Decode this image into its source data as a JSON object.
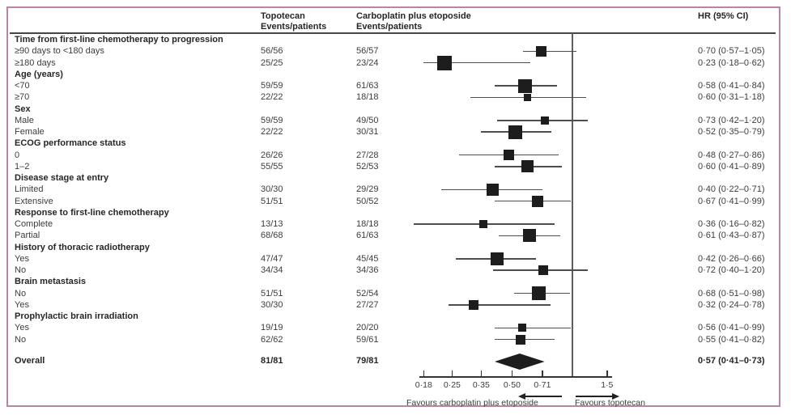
{
  "header": {
    "topotecan_line1": "Topotecan",
    "topotecan_line2": "Events/patients",
    "carboplatin_line1": "Carboplatin plus etoposide",
    "carboplatin_line2": "Events/patients",
    "hr": "HR (95% CI)"
  },
  "colors": {
    "border": "#b487a2",
    "marker": "#1d1d1d",
    "ci_line": "#4d4d4d",
    "ref_line": "#5e5e5e",
    "axis": "#333333",
    "text": "#3c3c3c"
  },
  "chart_data": {
    "type": "forest",
    "x_scale": "log",
    "reference_line_value": 1.0,
    "axis_ticks": [
      {
        "label": "0·18",
        "value": 0.18
      },
      {
        "label": "0·25",
        "value": 0.25
      },
      {
        "label": "0·35",
        "value": 0.35
      },
      {
        "label": "0·50",
        "value": 0.5
      },
      {
        "label": "0·71",
        "value": 0.71
      },
      {
        "label": "1·5",
        "value": 1.5
      }
    ],
    "footer": {
      "favours_left": "Favours carboplatin plus etoposide",
      "favours_right": "Favours topotecan"
    },
    "rows": [
      {
        "kind": "group",
        "label": "Time from first-line chemotherapy to progression"
      },
      {
        "kind": "data",
        "label": "≥90 days to <180 days",
        "topotecan": "56/56",
        "carboplatin": "56/57",
        "hr_text": "0·70 (0·57–1·05)",
        "hr": 0.7,
        "ci_low": 0.57,
        "ci_high": 1.05,
        "marker_size": 13
      },
      {
        "kind": "data",
        "label": "≥180 days",
        "topotecan": "25/25",
        "carboplatin": "23/24",
        "hr_text": "0·23 (0·18–0·62)",
        "hr": 0.23,
        "ci_low": 0.18,
        "ci_high": 0.62,
        "marker_size": 18
      },
      {
        "kind": "group",
        "label": "Age (years)"
      },
      {
        "kind": "data",
        "label": "<70",
        "topotecan": "59/59",
        "carboplatin": "61/63",
        "hr_text": "0·58 (0·41–0·84)",
        "hr": 0.58,
        "ci_low": 0.41,
        "ci_high": 0.84,
        "marker_size": 17
      },
      {
        "kind": "data",
        "label": "≥70",
        "topotecan": "22/22",
        "carboplatin": "18/18",
        "hr_text": "0·60 (0·31–1·18)",
        "hr": 0.6,
        "ci_low": 0.31,
        "ci_high": 1.18,
        "marker_size": 9
      },
      {
        "kind": "group",
        "label": "Sex"
      },
      {
        "kind": "data",
        "label": "Male",
        "topotecan": "59/59",
        "carboplatin": "49/50",
        "hr_text": "0·73 (0·42–1·20)",
        "hr": 0.73,
        "ci_low": 0.42,
        "ci_high": 1.2,
        "marker_size": 10
      },
      {
        "kind": "data",
        "label": "Female",
        "topotecan": "22/22",
        "carboplatin": "30/31",
        "hr_text": "0·52 (0·35–0·79)",
        "hr": 0.52,
        "ci_low": 0.35,
        "ci_high": 0.79,
        "marker_size": 17
      },
      {
        "kind": "group",
        "label": "ECOG performance status"
      },
      {
        "kind": "data",
        "label": "0",
        "topotecan": "26/26",
        "carboplatin": "27/28",
        "hr_text": "0·48 (0·27–0·86)",
        "hr": 0.48,
        "ci_low": 0.27,
        "ci_high": 0.86,
        "marker_size": 13
      },
      {
        "kind": "data",
        "label": "1–2",
        "topotecan": "55/55",
        "carboplatin": "52/53",
        "hr_text": "0·60 (0·41–0·89)",
        "hr": 0.6,
        "ci_low": 0.41,
        "ci_high": 0.89,
        "marker_size": 15
      },
      {
        "kind": "group",
        "label": "Disease stage at entry"
      },
      {
        "kind": "data",
        "label": "Limited",
        "topotecan": "30/30",
        "carboplatin": "29/29",
        "hr_text": "0·40 (0·22–0·71)",
        "hr": 0.4,
        "ci_low": 0.22,
        "ci_high": 0.71,
        "marker_size": 15
      },
      {
        "kind": "data",
        "label": "Extensive",
        "topotecan": "51/51",
        "carboplatin": "50/52",
        "hr_text": "0·67 (0·41–0·99)",
        "hr": 0.67,
        "ci_low": 0.41,
        "ci_high": 0.99,
        "marker_size": 14
      },
      {
        "kind": "group",
        "label": "Response to first-line chemotherapy"
      },
      {
        "kind": "data",
        "label": "Complete",
        "topotecan": "13/13",
        "carboplatin": "18/18",
        "hr_text": "0·36 (0·16–0·82)",
        "hr": 0.36,
        "ci_low": 0.16,
        "ci_high": 0.82,
        "marker_size": 10
      },
      {
        "kind": "data",
        "label": "Partial",
        "topotecan": "68/68",
        "carboplatin": "61/63",
        "hr_text": "0·61 (0·43–0·87)",
        "hr": 0.61,
        "ci_low": 0.43,
        "ci_high": 0.87,
        "marker_size": 16
      },
      {
        "kind": "group",
        "label": "History of thoracic radiotherapy"
      },
      {
        "kind": "data",
        "label": "Yes",
        "topotecan": "47/47",
        "carboplatin": "45/45",
        "hr_text": "0·42 (0·26–0·66)",
        "hr": 0.42,
        "ci_low": 0.26,
        "ci_high": 0.66,
        "marker_size": 16
      },
      {
        "kind": "data",
        "label": "No",
        "topotecan": "34/34",
        "carboplatin": "34/36",
        "hr_text": "0·72 (0·40–1·20)",
        "hr": 0.72,
        "ci_low": 0.4,
        "ci_high": 1.2,
        "marker_size": 12
      },
      {
        "kind": "group",
        "label": "Brain metastasis"
      },
      {
        "kind": "data",
        "label": "No",
        "topotecan": "51/51",
        "carboplatin": "52/54",
        "hr_text": "0·68 (0·51–0·98)",
        "hr": 0.68,
        "ci_low": 0.51,
        "ci_high": 0.98,
        "marker_size": 17
      },
      {
        "kind": "data",
        "label": "Yes",
        "topotecan": "30/30",
        "carboplatin": "27/27",
        "hr_text": "0·32 (0·24–0·78)",
        "hr": 0.32,
        "ci_low": 0.24,
        "ci_high": 0.78,
        "marker_size": 12
      },
      {
        "kind": "group",
        "label": "Prophylactic brain irradiation"
      },
      {
        "kind": "data",
        "label": "Yes",
        "topotecan": "19/19",
        "carboplatin": "20/20",
        "hr_text": "0·56 (0·41–0·99)",
        "hr": 0.56,
        "ci_low": 0.41,
        "ci_high": 0.99,
        "marker_size": 10
      },
      {
        "kind": "data",
        "label": "No",
        "topotecan": "62/62",
        "carboplatin": "59/61",
        "hr_text": "0·55 (0·41–0·82)",
        "hr": 0.55,
        "ci_low": 0.41,
        "ci_high": 0.82,
        "marker_size": 12
      },
      {
        "kind": "overall",
        "label": "Overall",
        "topotecan": "81/81",
        "carboplatin": "79/81",
        "hr_text": "0·57 (0·41–0·73)",
        "hr": 0.57,
        "ci_low": 0.41,
        "ci_high": 0.73
      }
    ]
  }
}
